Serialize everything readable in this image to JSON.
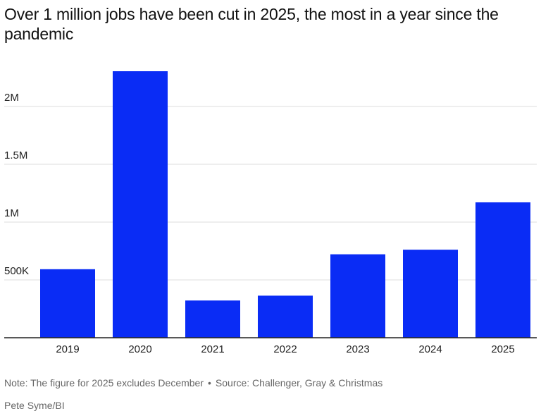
{
  "chart_data": {
    "type": "bar",
    "title": "Over 1 million jobs have been cut in 2025, the most in a year since the pandemic",
    "xlabel": "",
    "ylabel": "",
    "categories": [
      "2019",
      "2020",
      "2021",
      "2022",
      "2023",
      "2024",
      "2025"
    ],
    "values": [
      592556,
      2304755,
      321970,
      363832,
      721677,
      761358,
      1170821
    ],
    "ylim": [
      0,
      2400000
    ],
    "y_ticks": [
      {
        "value": 500000,
        "label": "500K"
      },
      {
        "value": 1000000,
        "label": "1M"
      },
      {
        "value": 1500000,
        "label": "1.5M"
      },
      {
        "value": 2000000,
        "label": "2M"
      }
    ],
    "grid": true,
    "legend": "none",
    "bar_color": "#0a2cf5"
  },
  "footer": {
    "note": "Note: The figure for 2025 excludes December",
    "separator": "•",
    "source": "Source: Challenger, Gray & Christmas",
    "credit": "Pete Syme/BI"
  }
}
